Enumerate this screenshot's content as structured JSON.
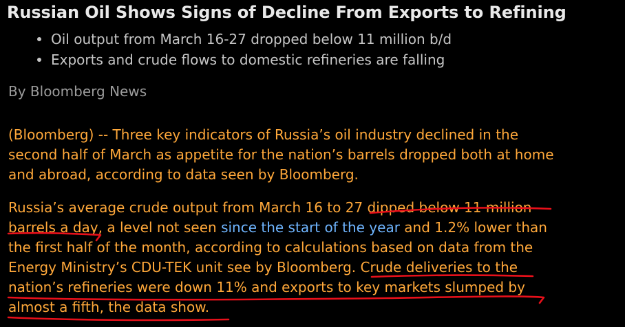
{
  "article": {
    "headline": "Russian Oil Shows Signs of Decline From Exports to Refining",
    "bullets": [
      "Oil output from March 16-27 dropped below 11 million b/d",
      "Exports and crude flows to domestic refineries are falling"
    ],
    "byline": "By Bloomberg News",
    "paragraph1": [
      "(Bloomberg) -- Three key indicators of Russia’s oil industry declined in the",
      "second half of March as appetite for the nation’s barrels dropped both at home",
      "and abroad, according to data seen by Bloomberg."
    ],
    "paragraph2": {
      "line1": "Russia’s average crude output from March 16 to 27 dipped below 11 million",
      "line2_before": "barrels a day, a level not seen ",
      "line2_link": "since the start of the year",
      "line2_after": " and 1.2% lower than",
      "line3": "the first half of the month, according to calculations based on data from the",
      "line4": "Energy Ministry’s CDU-TEK unit see by Bloomberg. Crude deliveries to the",
      "line5": "nation’s refineries were down 11% and exports to key markets slumped by",
      "line6": "almost a fifth, the data show."
    }
  },
  "colors": {
    "background": "#000000",
    "headline": "#e9e9e9",
    "bullets": "#c6c6c6",
    "byline": "#9c9c9c",
    "body": "#ffa83a",
    "link": "#6fb5ff",
    "annotation": "#e8101a"
  }
}
